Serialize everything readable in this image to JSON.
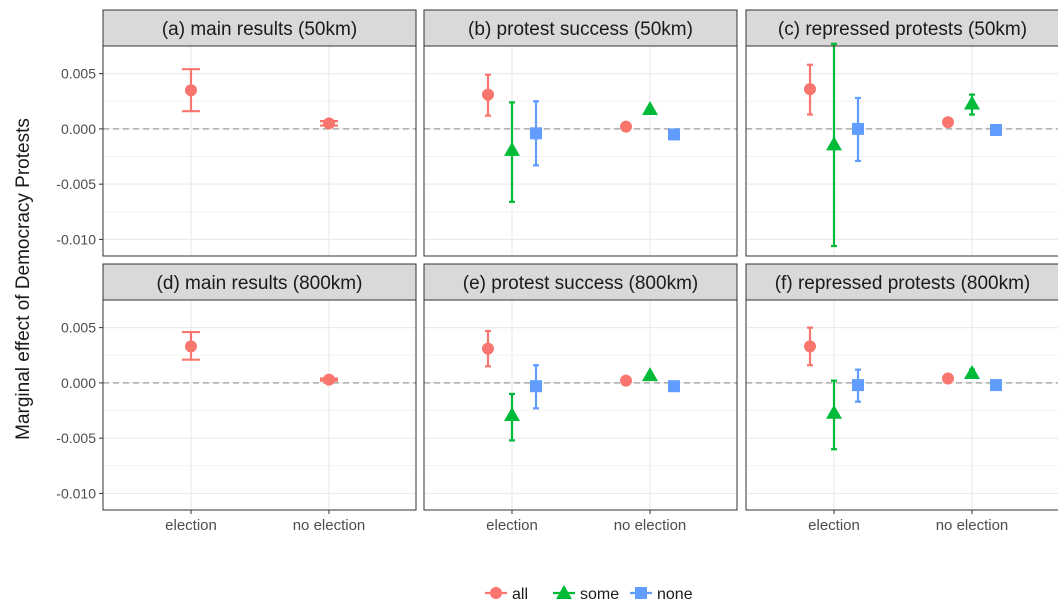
{
  "ylabel": "Marginal effect of Democracy Protests",
  "y_ticks": [
    "0.005",
    "0.000",
    "-0.005",
    "-0.010"
  ],
  "x_categories": [
    "election",
    "no election"
  ],
  "legend": [
    {
      "name": "all",
      "color": "#F8766D",
      "shape": "circle"
    },
    {
      "name": "some",
      "color": "#00BA38",
      "shape": "triangle"
    },
    {
      "name": "none",
      "color": "#619CFF",
      "shape": "square"
    }
  ],
  "colors": {
    "all": "#F8766D",
    "some": "#00BA38",
    "none": "#619CFF",
    "strip": "#D9D9D9",
    "grid": "#EBEBEB",
    "zero_line": "#AAAAAA"
  },
  "chart_data": [
    {
      "type": "pointrange",
      "title": "(a) main results (50km)",
      "categories": [
        "election",
        "no election"
      ],
      "ylim": [
        -0.0115,
        0.0075
      ],
      "series": [
        {
          "name": "all",
          "values": [
            0.0035,
            0.0005
          ],
          "lower": [
            0.0016,
            0.0003
          ],
          "upper": [
            0.0054,
            0.0007
          ]
        }
      ]
    },
    {
      "type": "pointrange",
      "title": "(b) protest success (50km)",
      "categories": [
        "election",
        "no election"
      ],
      "ylim": [
        -0.0115,
        0.0075
      ],
      "series": [
        {
          "name": "all",
          "values": [
            0.0031,
            0.0002
          ],
          "lower": [
            0.0012,
            0.0001
          ],
          "upper": [
            0.0049,
            0.0003
          ]
        },
        {
          "name": "some",
          "values": [
            -0.0019,
            0.0018
          ],
          "lower": [
            -0.0066,
            0.0016
          ],
          "upper": [
            0.0024,
            0.002
          ]
        },
        {
          "name": "none",
          "values": [
            -0.0004,
            -0.0005
          ],
          "lower": [
            -0.0033,
            -0.0006
          ],
          "upper": [
            0.0025,
            -0.0004
          ]
        }
      ]
    },
    {
      "type": "pointrange",
      "title": "(c) repressed protests (50km)",
      "categories": [
        "election",
        "no election"
      ],
      "ylim": [
        -0.0115,
        0.0075
      ],
      "series": [
        {
          "name": "all",
          "values": [
            0.0036,
            0.0006
          ],
          "lower": [
            0.0013,
            0.0005
          ],
          "upper": [
            0.0058,
            0.0007
          ]
        },
        {
          "name": "some",
          "values": [
            -0.0014,
            0.0023
          ],
          "lower": [
            -0.0106,
            0.0013
          ],
          "upper": [
            0.0077,
            0.0031
          ]
        },
        {
          "name": "none",
          "values": [
            0.0,
            -0.0001
          ],
          "lower": [
            -0.0029,
            -0.0002
          ],
          "upper": [
            0.0028,
            0.0
          ]
        }
      ]
    },
    {
      "type": "pointrange",
      "title": "(d) main results (800km)",
      "categories": [
        "election",
        "no election"
      ],
      "ylim": [
        -0.0115,
        0.0075
      ],
      "series": [
        {
          "name": "all",
          "values": [
            0.0033,
            0.0003
          ],
          "lower": [
            0.0021,
            0.0002
          ],
          "upper": [
            0.0046,
            0.0004
          ]
        }
      ]
    },
    {
      "type": "pointrange",
      "title": "(e) protest success (800km)",
      "categories": [
        "election",
        "no election"
      ],
      "ylim": [
        -0.0115,
        0.0075
      ],
      "series": [
        {
          "name": "all",
          "values": [
            0.0031,
            0.0002
          ],
          "lower": [
            0.0015,
            0.0001
          ],
          "upper": [
            0.0047,
            0.0003
          ]
        },
        {
          "name": "some",
          "values": [
            -0.0029,
            0.0007
          ],
          "lower": [
            -0.0052,
            0.0005
          ],
          "upper": [
            -0.001,
            0.0009
          ]
        },
        {
          "name": "none",
          "values": [
            -0.0003,
            -0.0003
          ],
          "lower": [
            -0.0023,
            -0.0004
          ],
          "upper": [
            0.0016,
            -0.0002
          ]
        }
      ]
    },
    {
      "type": "pointrange",
      "title": "(f) repressed protests (800km)",
      "categories": [
        "election",
        "no election"
      ],
      "ylim": [
        -0.0115,
        0.0075
      ],
      "series": [
        {
          "name": "all",
          "values": [
            0.0033,
            0.0004
          ],
          "lower": [
            0.0016,
            0.0003
          ],
          "upper": [
            0.005,
            0.0005
          ]
        },
        {
          "name": "some",
          "values": [
            -0.0027,
            0.0009
          ],
          "lower": [
            -0.006,
            0.0005
          ],
          "upper": [
            0.0002,
            0.0012
          ]
        },
        {
          "name": "none",
          "values": [
            -0.0002,
            -0.0002
          ],
          "lower": [
            -0.0017,
            -0.0003
          ],
          "upper": [
            0.0012,
            -0.0001
          ]
        }
      ]
    }
  ]
}
